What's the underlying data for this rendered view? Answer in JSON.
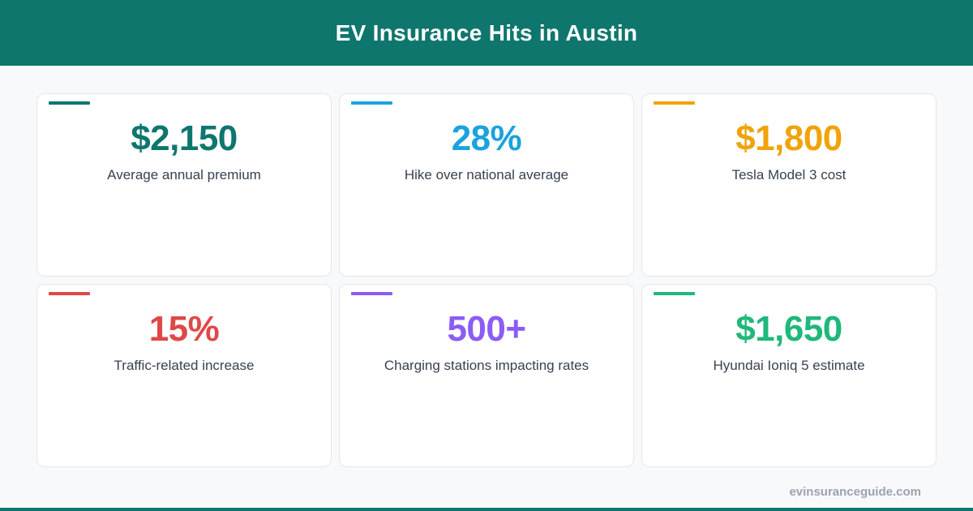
{
  "header": {
    "title": "EV Insurance Hits in Austin"
  },
  "cards": [
    {
      "value": "$2,150",
      "label": "Average annual premium",
      "color": "#0f766e"
    },
    {
      "value": "28%",
      "label": "Hike over national average",
      "color": "#1aa3dd"
    },
    {
      "value": "$1,800",
      "label": "Tesla Model 3 cost",
      "color": "#f0a30a"
    },
    {
      "value": "15%",
      "label": "Traffic-related increase",
      "color": "#e04848"
    },
    {
      "value": "500+",
      "label": "Charging stations impacting rates",
      "color": "#8b5cf6"
    },
    {
      "value": "$1,650",
      "label": "Hyundai Ioniq 5 estimate",
      "color": "#1fb87a"
    }
  ],
  "footer": {
    "url": "evinsuranceguide.com"
  },
  "colors": {
    "brand": "#0f766e",
    "background": "#f8f9fb",
    "label_text": "#374151",
    "footer_text": "#9aa3ae"
  }
}
